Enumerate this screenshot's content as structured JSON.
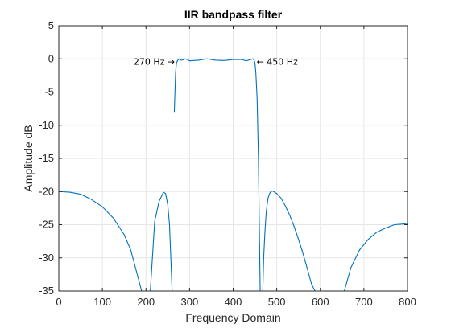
{
  "chart_data": {
    "type": "line",
    "title": "IIR bandpass filter",
    "xlabel": "Frequency Domain",
    "ylabel": "Amplitude dB",
    "xlim": [
      0,
      800
    ],
    "ylim": [
      -35,
      5
    ],
    "xticks": [
      "0",
      "100",
      "200",
      "300",
      "400",
      "500",
      "600",
      "700",
      "800"
    ],
    "yticks": [
      "5",
      "0",
      "-5",
      "-10",
      "-15",
      "-20",
      "-25",
      "-30",
      "-35"
    ],
    "grid": true,
    "colors": {
      "line": "#0072BD",
      "grid": "#e6e6e6",
      "axis": "#262626"
    },
    "annotations": [
      {
        "text": "270 Hz →",
        "x": 270,
        "y": -0.4,
        "align": "right"
      },
      {
        "text": "← 450 Hz",
        "x": 450,
        "y": -0.4,
        "align": "left"
      }
    ],
    "series": [
      {
        "x": [
          0,
          25,
          50,
          75,
          100,
          125,
          150,
          165,
          180,
          190,
          198,
          210,
          220,
          230,
          240,
          245,
          250,
          254,
          257,
          260,
          262,
          265,
          268,
          270,
          273,
          276,
          280,
          285,
          290,
          295,
          300,
          320,
          340,
          360,
          380,
          400,
          420,
          430,
          440,
          445,
          448,
          450,
          452,
          455,
          458,
          462,
          466,
          468,
          470,
          473,
          476,
          480,
          485,
          490,
          495,
          500,
          510,
          520,
          530,
          540,
          550,
          560,
          570,
          580,
          588,
          592,
          655,
          670,
          690,
          710,
          730,
          750,
          770,
          790,
          800
        ],
        "y": [
          -20,
          -20.1,
          -20.4,
          -21.2,
          -22.3,
          -24,
          -26.5,
          -28.8,
          -32.5,
          -35,
          null,
          -35,
          -24.5,
          -21.5,
          -20.1,
          -20.3,
          -22,
          -25,
          -30,
          -35,
          null,
          -8,
          -2,
          -0.6,
          -0.2,
          0,
          -0.2,
          -0.15,
          0,
          -0.1,
          -0.3,
          -0.2,
          0,
          -0.2,
          -0.25,
          -0.1,
          -0.1,
          -0.3,
          -0.1,
          0,
          -0.2,
          -0.6,
          -2,
          -6,
          -15,
          -35,
          null,
          -35,
          -30,
          -26,
          -23,
          -21,
          -20.1,
          -19.9,
          -20.1,
          -20.3,
          -21,
          -22.2,
          -23.6,
          -25.3,
          -27.2,
          -29.3,
          -31.6,
          -34,
          -35,
          null,
          -35,
          -31.5,
          -28.8,
          -27.2,
          -26.1,
          -25.5,
          -25,
          -24.9,
          -24.8
        ]
      }
    ]
  }
}
